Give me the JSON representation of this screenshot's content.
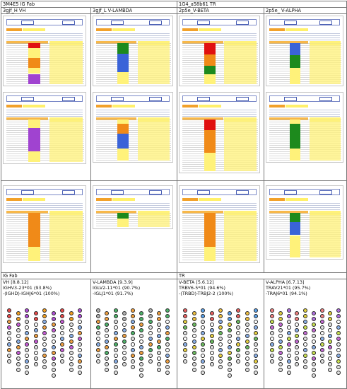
{
  "header_row": {
    "left_title": "3M4E5 IG Fab",
    "right_title": "1G4_a58b61 TR"
  },
  "subheaders": [
    "3gjf_H VH",
    "3gjf_L V-LAMBDA",
    "2p5e_V-BETA",
    "2p5e_ V-ALPHA"
  ],
  "bottom_header": {
    "left_title": "IG Fab",
    "right_title": "TR"
  },
  "captions": [
    {
      "line1": "VH [8.8.12]",
      "line2": "IGHV3-23*01 (93.8%)",
      "line3": "-(IGHD)-IGHJ6*01 (100%)"
    },
    {
      "line1": "V-LAMBDA [9.3.9]",
      "line2": "IGLV2-11*01 (90.7%)",
      "line3": "-IGLJ1*01 (91.7%)"
    },
    {
      "line1": "V-BETA [5.6.12]",
      "line2": "TRBV6-5*01 (94.6%)",
      "line3": "-(TRBD)-TRBJ2-2 (100%)"
    },
    {
      "line1": "V-ALPHA [6.7.13]",
      "line2": "TRAV21*01 (95.7%)",
      "line3": "-TRAJ6*01 (94.1%)"
    }
  ],
  "colors": {
    "border": "#777777",
    "cdr1_red": "#e01010",
    "cdr2_orange": "#f08a18",
    "cdr3_purple": "#a043d0",
    "cdr_blue": "#3a63d8",
    "cdr_green": "#1d8a1d",
    "highlight_yellow": "#fff27a"
  },
  "icons": [
    "screenshot-thumbnail",
    "collier-de-perles-diagram"
  ]
}
